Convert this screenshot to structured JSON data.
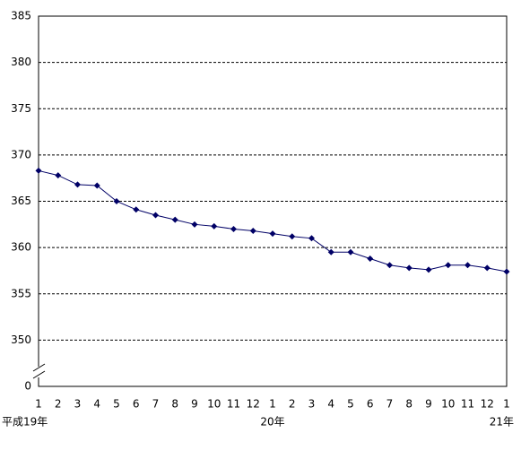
{
  "chart_data": {
    "type": "line",
    "categories": [
      "1",
      "2",
      "3",
      "4",
      "5",
      "6",
      "7",
      "8",
      "9",
      "10",
      "11",
      "12",
      "1",
      "2",
      "3",
      "4",
      "5",
      "6",
      "7",
      "8",
      "9",
      "10",
      "11",
      "12",
      "1"
    ],
    "x_sublabels": [
      "平成19年",
      null,
      null,
      null,
      null,
      null,
      null,
      null,
      null,
      null,
      null,
      null,
      "20年",
      null,
      null,
      null,
      null,
      null,
      null,
      null,
      null,
      null,
      null,
      null,
      "21年"
    ],
    "series": [
      {
        "color": "#000066",
        "values": [
          368.3,
          367.8,
          366.8,
          366.7,
          365.0,
          364.1,
          363.5,
          363.0,
          362.5,
          362.3,
          362.0,
          361.8,
          361.5,
          361.2,
          361.0,
          359.5,
          359.5,
          358.8,
          358.1,
          357.8,
          357.6,
          358.1,
          358.1,
          357.8,
          357.4
        ]
      }
    ],
    "ylim": [
      0,
      385
    ],
    "yticks": [
      0,
      350,
      355,
      360,
      365,
      370,
      375,
      380,
      385
    ],
    "axis_break": true,
    "grid": true
  }
}
